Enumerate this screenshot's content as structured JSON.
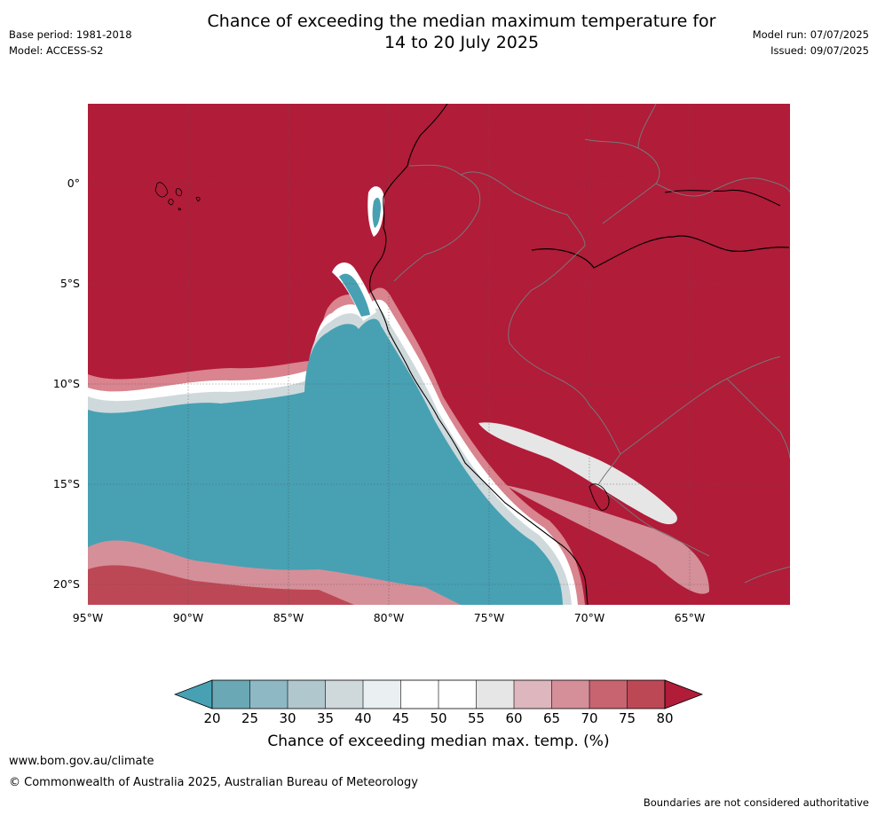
{
  "title": "Chance of exceeding the median maximum temperature for\n14 to 20 July 2025",
  "base_period": "Base period: 1981-2018",
  "model": "Model: ACCESS-S2",
  "model_run": "Model run: 07/07/2025",
  "issued": "Issued: 09/07/2025",
  "map": {
    "background_color": "#b11c39",
    "lat_labels": [
      "0°",
      "5°S",
      "10°S",
      "15°S",
      "20°S"
    ],
    "lat_values": [
      0,
      -5,
      -10,
      -15,
      -20
    ],
    "lon_labels": [
      "95°W",
      "90°W",
      "85°W",
      "80°W",
      "75°W",
      "70°W",
      "65°W"
    ],
    "lon_values": [
      -95,
      -90,
      -85,
      -80,
      -75,
      -70,
      -65
    ],
    "lon_range": [
      -95,
      -60
    ],
    "lat_range": [
      -21,
      4
    ]
  },
  "colorbar": {
    "ticks": [
      "20",
      "25",
      "30",
      "35",
      "40",
      "45",
      "50",
      "55",
      "60",
      "65",
      "70",
      "75",
      "80"
    ],
    "colors": [
      "#6aa8b5",
      "#8db8c4",
      "#afc7cd",
      "#cfd9dc",
      "#eaf0f2",
      "#ffffff",
      "#ffffff",
      "#e6e6e6",
      "#deb6bd",
      "#d58f99",
      "#c76470",
      "#bd4855"
    ],
    "below_color": "#47a1b3",
    "above_color": "#b11c39",
    "caption": "Chance of exceeding median max. temp. (%)"
  },
  "footer": {
    "url": "www.bom.gov.au/climate",
    "copyright": "© Commonwealth of Australia 2025, Australian Bureau of Meteorology",
    "disclaimer": "Boundaries are not considered authoritative"
  }
}
